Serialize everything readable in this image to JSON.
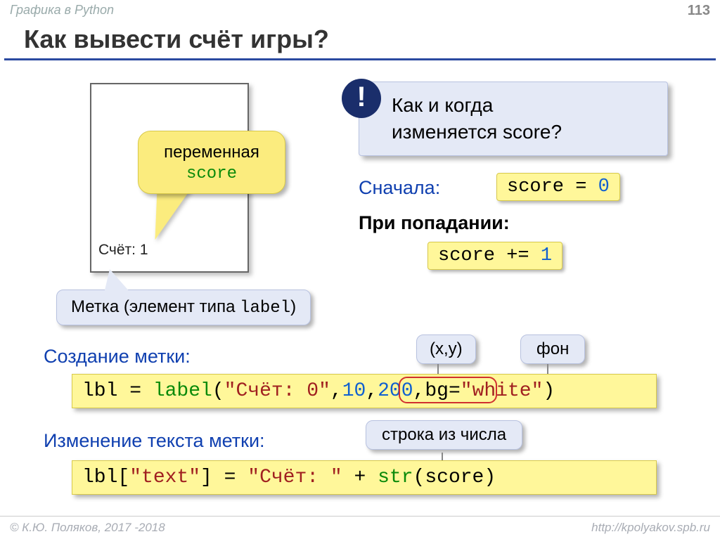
{
  "header": {
    "subject": "Графика в Python",
    "page_number": "113"
  },
  "title": "Как вывести счёт игры?",
  "window": {
    "score_text": "Счёт: 1"
  },
  "var_callout": {
    "line1": "переменная",
    "line2": "score"
  },
  "question": {
    "bang": "!",
    "line1": "Как и когда",
    "line2": "изменяется score?"
  },
  "first": {
    "label": "Сначала",
    "code_lhs": "score = ",
    "code_val": "0"
  },
  "on_hit": {
    "label": "При попадании",
    "code_lhs": "score += ",
    "code_val": "1"
  },
  "label_note": {
    "text_prefix": "Метка (элемент типа ",
    "code": "label",
    "text_suffix": ")"
  },
  "create": {
    "label": "Создание метки:"
  },
  "code1": {
    "p1": "lbl = ",
    "fn": "label",
    "p2": "(",
    "str": "\"Счёт: 0\"",
    "p3": ",",
    "x": "10",
    "p4": ",",
    "y": "200",
    "p5": ",bg=",
    "bg": "\"white\"",
    "p6": ")"
  },
  "xy_note": "(x,y)",
  "bg_note": "фон",
  "change": {
    "label": "Изменение текста метки:"
  },
  "str_note": "строка из числа",
  "code2": {
    "p1": "lbl[",
    "key": "\"text\"",
    "p2": "] = ",
    "str": "\"Счёт: \"",
    "p3": " + ",
    "fn": "str",
    "p4": "(score)"
  },
  "footer": {
    "copyright": "© К.Ю. Поляков, 2017 -2018",
    "url": "http://kpolyakov.spb.ru"
  },
  "colors": {
    "accent_blue": "#1040b0",
    "dark_blue": "#1a2e6b",
    "yellow": "#fff79a",
    "light_blue": "#e4e9f6",
    "green": "#0a8a0a",
    "str_red": "#a02020",
    "num_blue": "#1060d0"
  }
}
